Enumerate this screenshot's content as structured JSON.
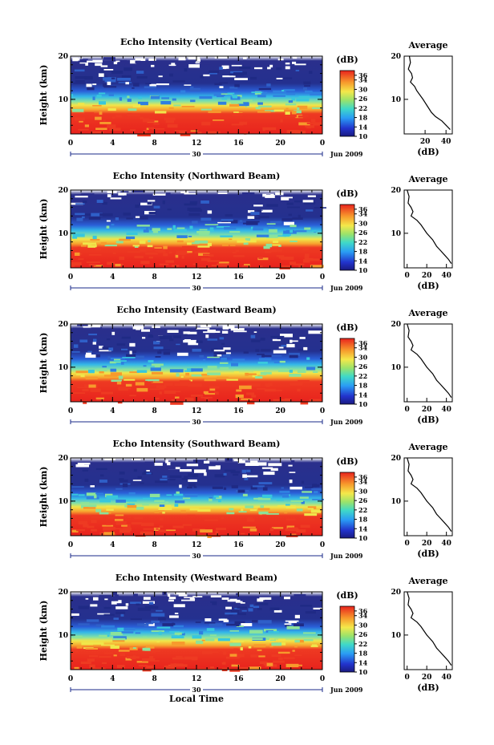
{
  "figure": {
    "xlabel": "Local Time",
    "ylabel": "Height (km)",
    "date_label": "Jun 2009",
    "day_label": "30",
    "colorbar_title": "(dB)",
    "colorbar_ticks": [
      "36",
      "34",
      "30",
      "26",
      "22",
      "18",
      "14",
      "10"
    ],
    "avg_title": "Average",
    "avg_xlabel": "(dB)"
  },
  "chart_data": [
    {
      "type": "heatmap",
      "title": "Echo Intensity (Vertical Beam)",
      "xlabel": "",
      "ylabel": "Height (km)",
      "xticks": [
        "0",
        "4",
        "8",
        "12",
        "16",
        "20",
        "0"
      ],
      "yticks": [
        "20",
        "10"
      ],
      "ylim": [
        2,
        20
      ],
      "xlim": [
        0,
        24
      ],
      "zlim": [
        10,
        38
      ],
      "colorbar": {
        "label": "(dB)",
        "ticks": [
          36,
          34,
          30,
          26,
          22,
          18,
          14,
          10
        ]
      },
      "average_profile": {
        "title": "Average",
        "xlabel": "(dB)",
        "xticks": [
          "20",
          "40"
        ],
        "yticks": [
          "20",
          "10"
        ],
        "xlim": [
          0,
          46
        ],
        "ylim": [
          2,
          20
        ],
        "x": [
          5,
          6,
          4,
          7,
          8,
          6,
          10,
          12,
          18,
          22,
          26,
          30,
          36,
          40,
          44
        ],
        "y": [
          20,
          18.5,
          17,
          16,
          15,
          14,
          13,
          12,
          10,
          8.5,
          7,
          6,
          5,
          4,
          3
        ]
      }
    },
    {
      "type": "heatmap",
      "title": "Echo Intensity (Northward Beam)",
      "xlabel": "",
      "ylabel": "Height (km)",
      "xticks": [
        "0",
        "4",
        "8",
        "12",
        "16",
        "20",
        "0"
      ],
      "yticks": [
        "20",
        "10"
      ],
      "ylim": [
        2,
        20
      ],
      "xlim": [
        0,
        24
      ],
      "zlim": [
        10,
        38
      ],
      "colorbar": {
        "label": "(dB)",
        "ticks": [
          36,
          34,
          30,
          26,
          22,
          18,
          14,
          10
        ]
      },
      "average_profile": {
        "title": "Average",
        "xlabel": "(dB)",
        "xticks": [
          "0",
          "20",
          "40"
        ],
        "yticks": [
          "20",
          "10"
        ],
        "xlim": [
          -3,
          46
        ],
        "ylim": [
          2,
          20
        ],
        "x": [
          0,
          2,
          1,
          4,
          6,
          4,
          10,
          14,
          20,
          26,
          30,
          34,
          38,
          42,
          45
        ],
        "y": [
          20,
          18.5,
          17,
          16,
          15,
          14,
          13,
          12,
          10,
          8.5,
          7,
          6,
          5,
          4,
          3
        ]
      }
    },
    {
      "type": "heatmap",
      "title": "Echo Intensity (Eastward Beam)",
      "xlabel": "",
      "ylabel": "Height (km)",
      "xticks": [
        "0",
        "4",
        "8",
        "12",
        "16",
        "20",
        "0"
      ],
      "yticks": [
        "20",
        "10"
      ],
      "ylim": [
        2,
        20
      ],
      "xlim": [
        0,
        24
      ],
      "zlim": [
        10,
        38
      ],
      "colorbar": {
        "label": "(dB)",
        "ticks": [
          36,
          34,
          30,
          26,
          22,
          18,
          14,
          10
        ]
      },
      "average_profile": {
        "title": "Average",
        "xlabel": "(dB)",
        "xticks": [
          "0",
          "20",
          "40"
        ],
        "yticks": [
          "20",
          "10"
        ],
        "xlim": [
          -3,
          46
        ],
        "ylim": [
          2,
          20
        ],
        "x": [
          0,
          2,
          1,
          4,
          6,
          4,
          10,
          14,
          20,
          26,
          30,
          34,
          38,
          42,
          45
        ],
        "y": [
          20,
          18.5,
          17,
          16,
          15,
          14,
          13,
          12,
          10,
          8.5,
          7,
          6,
          5,
          4,
          3
        ]
      }
    },
    {
      "type": "heatmap",
      "title": "Echo Intensity (Southward Beam)",
      "xlabel": "",
      "ylabel": "Height (km)",
      "xticks": [
        "0",
        "4",
        "8",
        "12",
        "16",
        "20",
        "0"
      ],
      "yticks": [
        "20",
        "10"
      ],
      "ylim": [
        2,
        20
      ],
      "xlim": [
        0,
        24
      ],
      "zlim": [
        10,
        38
      ],
      "colorbar": {
        "label": "(dB)",
        "ticks": [
          36,
          34,
          30,
          26,
          22,
          18,
          14,
          10
        ]
      },
      "average_profile": {
        "title": "Average",
        "xlabel": "(dB)",
        "xticks": [
          "0",
          "20",
          "40"
        ],
        "yticks": [
          "20",
          "10"
        ],
        "xlim": [
          -3,
          46
        ],
        "ylim": [
          2,
          20
        ],
        "x": [
          0,
          2,
          1,
          4,
          6,
          4,
          10,
          14,
          20,
          26,
          30,
          34,
          38,
          42,
          45
        ],
        "y": [
          20,
          18.5,
          17,
          16,
          15,
          14,
          13,
          12,
          10,
          8.5,
          7,
          6,
          5,
          4,
          3
        ]
      }
    },
    {
      "type": "heatmap",
      "title": "Echo Intensity (Westward Beam)",
      "xlabel": "Local Time",
      "ylabel": "Height (km)",
      "xticks": [
        "0",
        "4",
        "8",
        "12",
        "16",
        "20",
        "0"
      ],
      "yticks": [
        "20",
        "10"
      ],
      "ylim": [
        2,
        20
      ],
      "xlim": [
        0,
        24
      ],
      "zlim": [
        10,
        38
      ],
      "colorbar": {
        "label": "(dB)",
        "ticks": [
          36,
          34,
          30,
          26,
          22,
          18,
          14,
          10
        ]
      },
      "average_profile": {
        "title": "Average",
        "xlabel": "(dB)",
        "xticks": [
          "0",
          "20",
          "40"
        ],
        "yticks": [
          "20",
          "10"
        ],
        "xlim": [
          -3,
          46
        ],
        "ylim": [
          2,
          20
        ],
        "x": [
          0,
          2,
          1,
          4,
          6,
          4,
          10,
          14,
          20,
          26,
          30,
          34,
          38,
          42,
          45
        ],
        "y": [
          20,
          18.5,
          17,
          16,
          15,
          14,
          13,
          12,
          10,
          8.5,
          7,
          6,
          5,
          4,
          3
        ]
      }
    }
  ]
}
